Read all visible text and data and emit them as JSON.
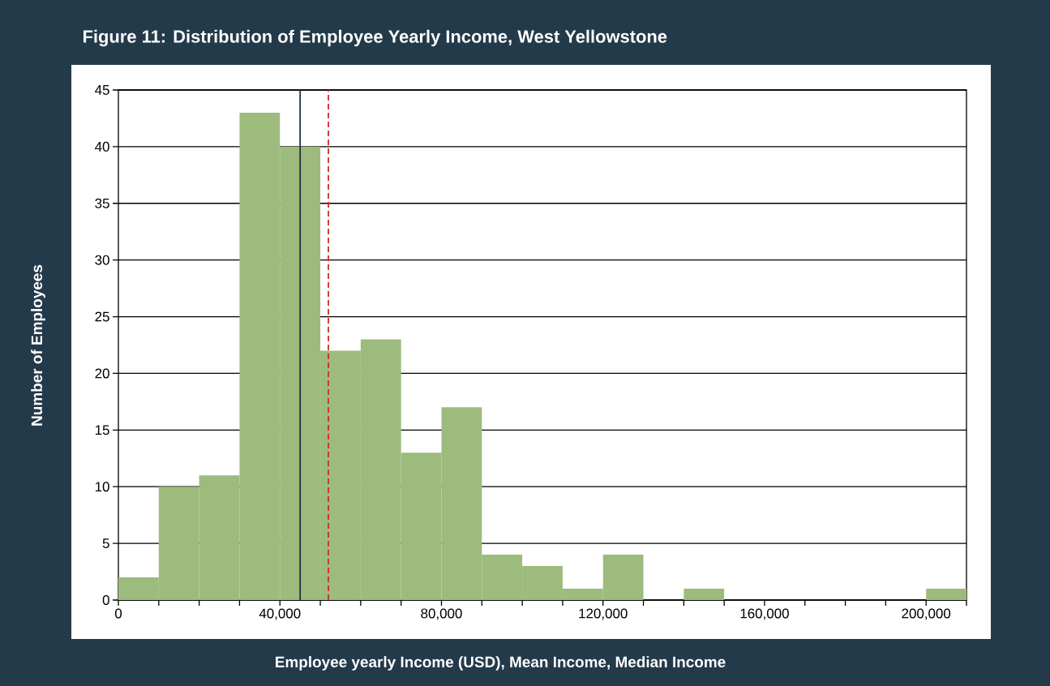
{
  "chart_data": {
    "type": "histogram",
    "title": "Figure 11: Distribution of Employee Yearly Income, West Yellowstone",
    "xlabel": "Employee yearly Income (USD), Mean Income, Median Income",
    "ylabel": "Number of Employees",
    "bins": [
      0,
      10000,
      20000,
      30000,
      40000,
      50000,
      60000,
      70000,
      80000,
      90000,
      100000,
      110000,
      120000,
      130000,
      140000,
      150000,
      160000,
      170000,
      180000,
      190000,
      200000,
      210000
    ],
    "values": [
      2,
      10,
      11,
      43,
      40,
      22,
      23,
      13,
      17,
      4,
      3,
      1,
      4,
      0,
      1,
      0,
      0,
      0,
      0,
      0,
      1
    ],
    "color": "#9dbb7d",
    "xlim": [
      0,
      210000
    ],
    "ylim": [
      0,
      45
    ],
    "xticks": [
      {
        "value": 0,
        "label": "0"
      },
      {
        "value": 10000,
        "label": null
      },
      {
        "value": 20000,
        "label": null
      },
      {
        "value": 30000,
        "label": null
      },
      {
        "value": 40000,
        "label": "40,000"
      },
      {
        "value": 50000,
        "label": null
      },
      {
        "value": 60000,
        "label": null
      },
      {
        "value": 70000,
        "label": null
      },
      {
        "value": 80000,
        "label": "80,000"
      },
      {
        "value": 90000,
        "label": null
      },
      {
        "value": 100000,
        "label": null
      },
      {
        "value": 110000,
        "label": null
      },
      {
        "value": 120000,
        "label": "120,000"
      },
      {
        "value": 130000,
        "label": null
      },
      {
        "value": 140000,
        "label": null
      },
      {
        "value": 150000,
        "label": null
      },
      {
        "value": 160000,
        "label": "160,000"
      },
      {
        "value": 170000,
        "label": null
      },
      {
        "value": 180000,
        "label": null
      },
      {
        "value": 190000,
        "label": null
      },
      {
        "value": 200000,
        "label": "200,000"
      },
      {
        "value": 210000,
        "label": null
      }
    ],
    "yticks": [
      0,
      5,
      10,
      15,
      20,
      25,
      30,
      35,
      40,
      45
    ],
    "grid": "y",
    "ref_lines": [
      {
        "axis": "x",
        "value": 45000,
        "color": "#1f3347",
        "line_style": "solid"
      },
      {
        "axis": "x",
        "value": 52000,
        "color": "#d62828",
        "line_style": "dashed"
      }
    ]
  }
}
